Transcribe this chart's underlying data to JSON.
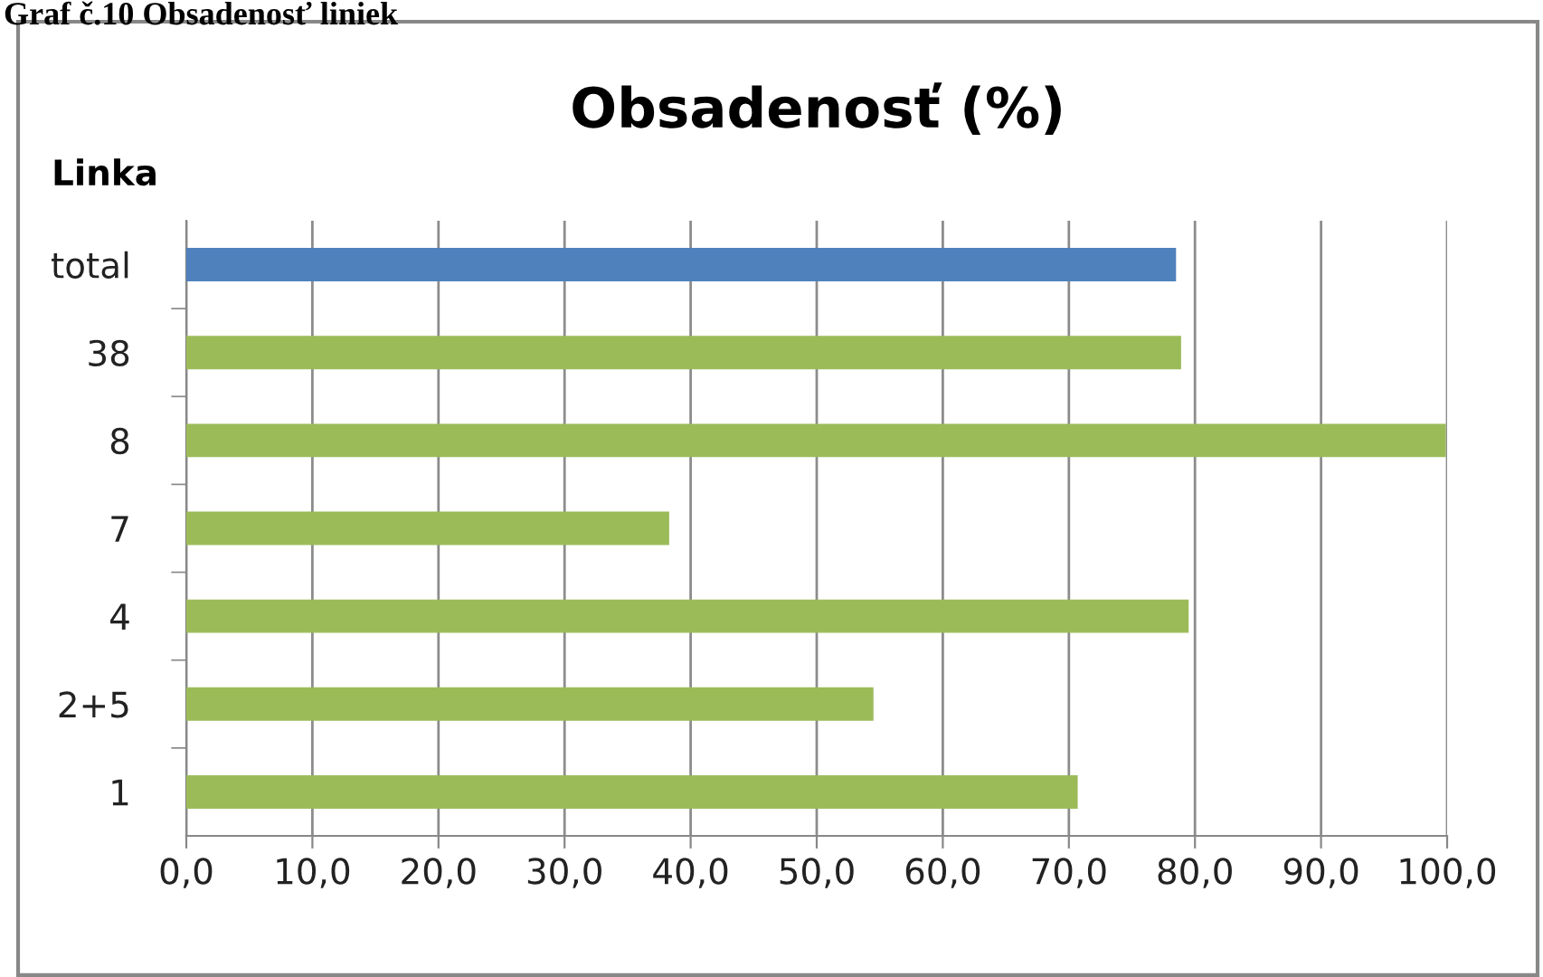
{
  "chart_data": {
    "type": "bar",
    "orientation": "horizontal",
    "title": "Obsadenosť (%)",
    "ylabel": "Linka",
    "annotations": [
      "Graf č.10 Obsadenosť liniek"
    ],
    "categories": [
      "total",
      "38",
      "8",
      "7",
      "4",
      "2+5",
      "1"
    ],
    "values": [
      78.5,
      78.9,
      99.9,
      38.3,
      79.5,
      54.5,
      70.7
    ],
    "colors": [
      "#4f81bd",
      "#9bbb59",
      "#9bbb59",
      "#9bbb59",
      "#9bbb59",
      "#9bbb59",
      "#9bbb59"
    ],
    "xlim": [
      0,
      100
    ],
    "xticks": [
      {
        "value": 0,
        "label": "0,0"
      },
      {
        "value": 10,
        "label": "10,0"
      },
      {
        "value": 20,
        "label": "20,0"
      },
      {
        "value": 30,
        "label": "30,0"
      },
      {
        "value": 40,
        "label": "40,0"
      },
      {
        "value": 50,
        "label": "50,0"
      },
      {
        "value": 60,
        "label": "60,0"
      },
      {
        "value": 70,
        "label": "70,0"
      },
      {
        "value": 80,
        "label": "80,0"
      },
      {
        "value": 90,
        "label": "90,0"
      },
      {
        "value": 100,
        "label": "100,0"
      }
    ],
    "grid": "x",
    "legend": false
  }
}
